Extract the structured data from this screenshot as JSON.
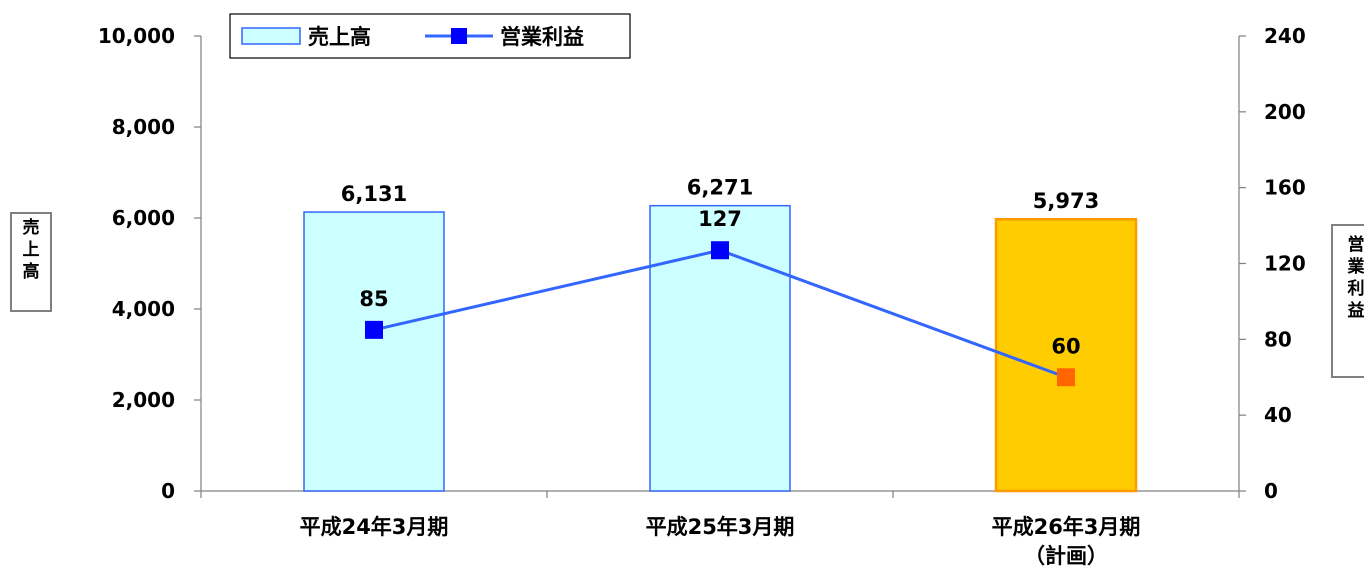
{
  "chart_data": {
    "type": "bar+line",
    "categories": [
      [
        "平成24年3月期"
      ],
      [
        "平成25年3月期"
      ],
      [
        "平成26年3月期",
        "（計画）"
      ]
    ],
    "series": [
      {
        "name": "売上高",
        "type": "bar",
        "axis": "left",
        "values": [
          6131,
          6271,
          5973
        ],
        "value_labels": [
          "6,131",
          "6,271",
          "5,973"
        ]
      },
      {
        "name": "営業利益",
        "type": "line",
        "axis": "right",
        "values": [
          85,
          127,
          60
        ],
        "value_labels": [
          "85",
          "127",
          "60"
        ]
      }
    ],
    "y_left": {
      "title": "売上高",
      "range": [
        0,
        10000
      ],
      "ticks": [
        0,
        2000,
        4000,
        6000,
        8000,
        10000
      ],
      "tick_labels": [
        "0",
        "2,000",
        "4,000",
        "6,000",
        "8,000",
        "10,000"
      ]
    },
    "y_right": {
      "title": "営業利益",
      "range": [
        0,
        240
      ],
      "ticks": [
        0,
        40,
        80,
        120,
        160,
        200,
        240
      ],
      "tick_labels": [
        "0",
        "40",
        "80",
        "120",
        "160",
        "200",
        "240"
      ]
    },
    "highlight_index": 2,
    "legend": {
      "position": "top-left"
    },
    "grid": false,
    "colors": {
      "bar_fill": "#CCFFFF",
      "bar_stroke": "#3366FF",
      "bar_highlight_fill": "#FFCC00",
      "bar_highlight_stroke": "#FF9900",
      "line": "#3366FF",
      "marker": "#0000FF",
      "marker_highlight": "#FF6600",
      "axis": "#808080"
    }
  }
}
